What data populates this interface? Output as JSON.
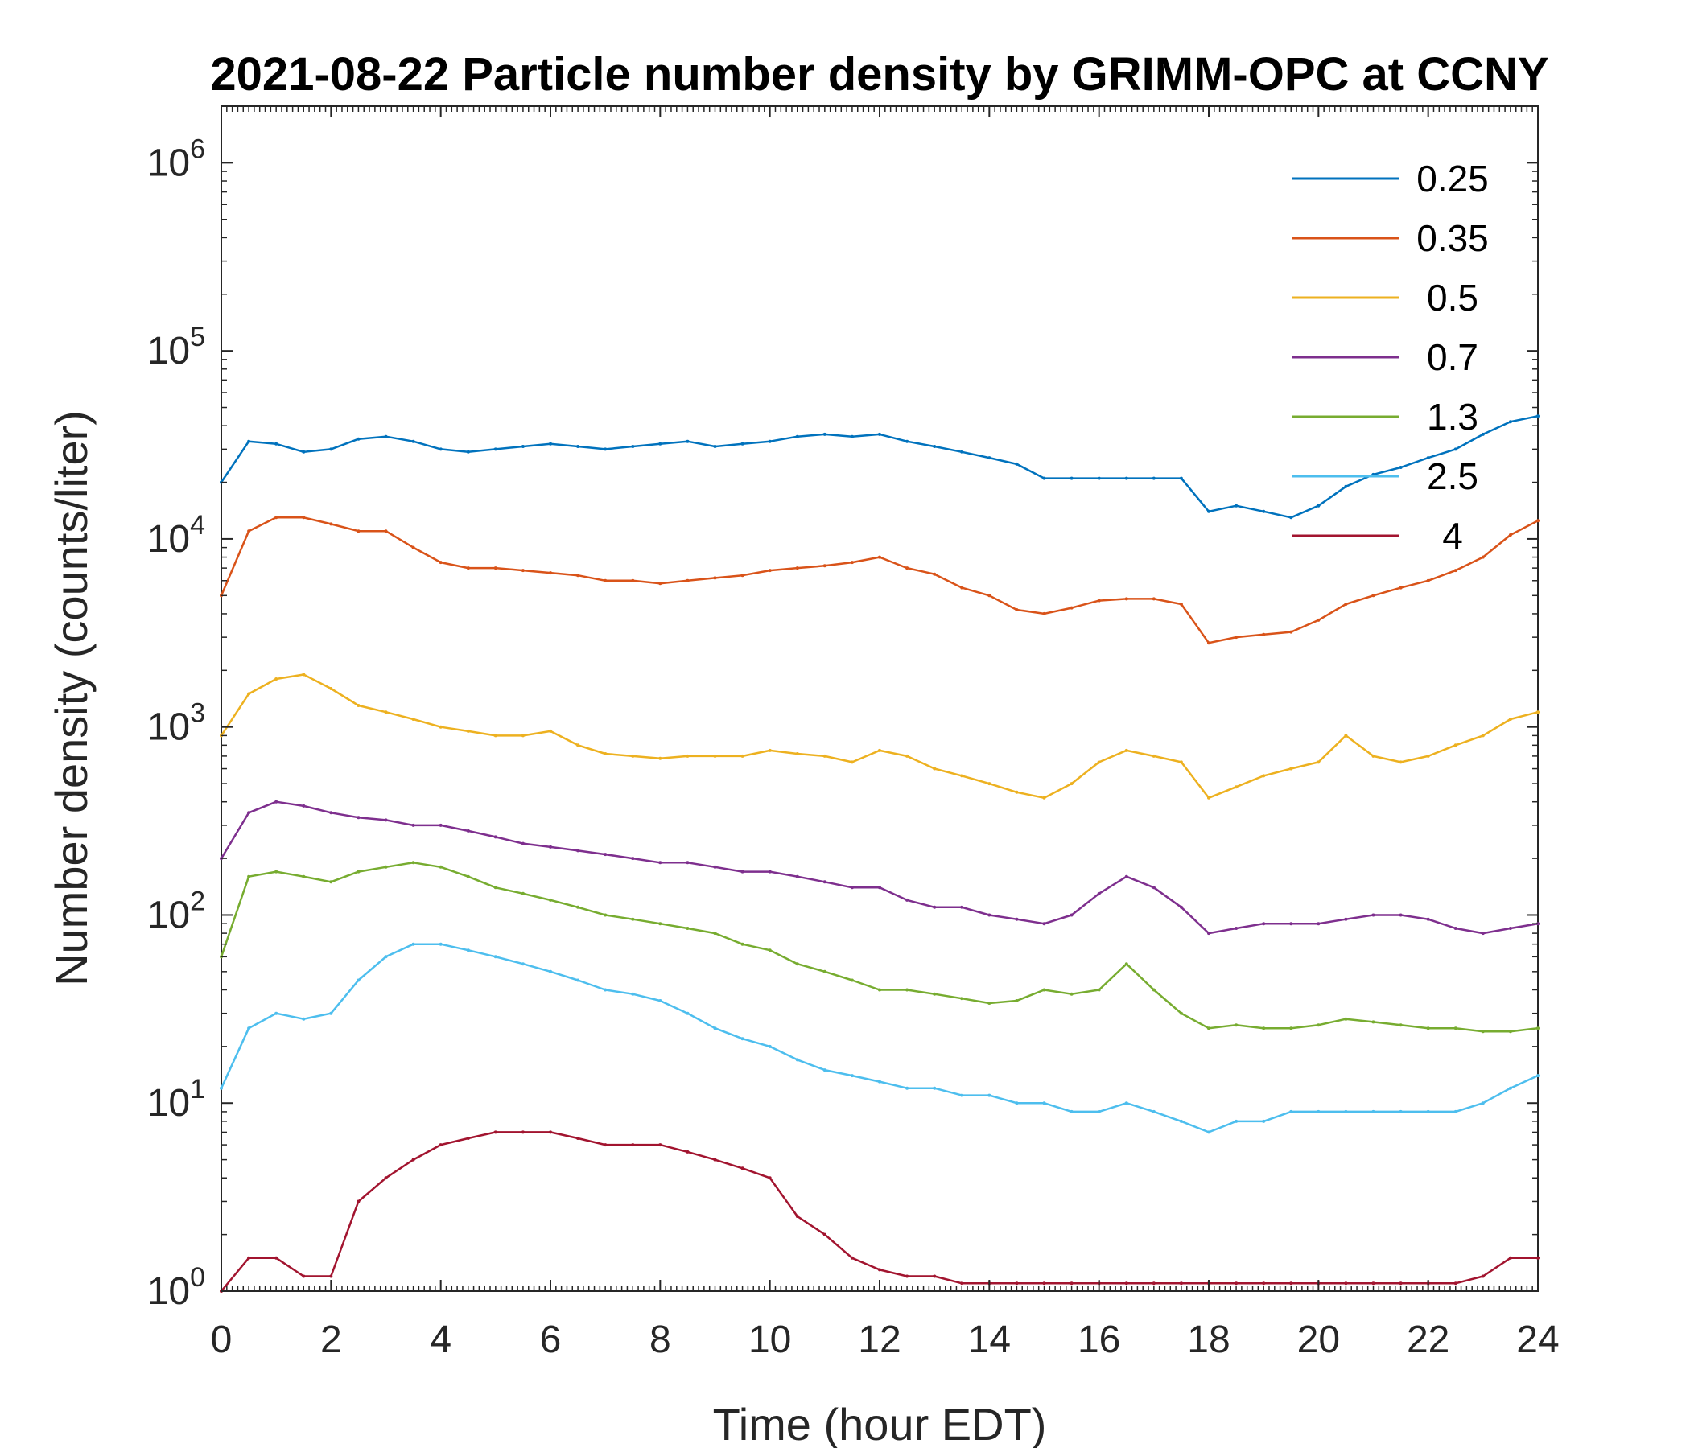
{
  "chart_data": {
    "type": "line",
    "title": "2021-08-22 Particle number density by GRIMM-OPC at CCNY",
    "xlabel": "Time (hour EDT)",
    "ylabel": "Number density (counts/liter)",
    "xlim": [
      0,
      24
    ],
    "ylim": [
      1,
      2000000
    ],
    "yscale": "log",
    "x_ticks": [
      "0",
      "2",
      "4",
      "6",
      "8",
      "10",
      "12",
      "14",
      "16",
      "18",
      "20",
      "22",
      "24"
    ],
    "y_ticks": [
      {
        "base": "10",
        "exp": "0"
      },
      {
        "base": "10",
        "exp": "1"
      },
      {
        "base": "10",
        "exp": "2"
      },
      {
        "base": "10",
        "exp": "3"
      },
      {
        "base": "10",
        "exp": "4"
      },
      {
        "base": "10",
        "exp": "5"
      },
      {
        "base": "10",
        "exp": "6"
      }
    ],
    "grid": false,
    "legend_position": "top-right",
    "x": [
      0,
      0.5,
      1,
      1.5,
      2,
      2.5,
      3,
      3.5,
      4,
      4.5,
      5,
      5.5,
      6,
      6.5,
      7,
      7.5,
      8,
      8.5,
      9,
      9.5,
      10,
      10.5,
      11,
      11.5,
      12,
      12.5,
      13,
      13.5,
      14,
      14.5,
      15,
      15.5,
      16,
      16.5,
      17,
      17.5,
      18,
      18.5,
      19,
      19.5,
      20,
      20.5,
      21,
      21.5,
      22,
      22.5,
      23,
      23.5,
      24
    ],
    "series": [
      {
        "name": "0.25",
        "color": "#0072BD",
        "values": [
          20000,
          33000,
          32000,
          29000,
          30000,
          34000,
          35000,
          33000,
          30000,
          29000,
          30000,
          31000,
          32000,
          31000,
          30000,
          31000,
          32000,
          33000,
          31000,
          32000,
          33000,
          35000,
          36000,
          35000,
          36000,
          33000,
          31000,
          29000,
          27000,
          25000,
          21000,
          21000,
          21000,
          21000,
          21000,
          21000,
          14000,
          15000,
          14000,
          13000,
          15000,
          19000,
          22000,
          24000,
          27000,
          30000,
          36000,
          42000,
          45000
        ]
      },
      {
        "name": "0.35",
        "color": "#D95319",
        "values": [
          5000,
          11000,
          13000,
          13000,
          12000,
          11000,
          11000,
          9000,
          7500,
          7000,
          7000,
          6800,
          6600,
          6400,
          6000,
          6000,
          5800,
          6000,
          6200,
          6400,
          6800,
          7000,
          7200,
          7500,
          8000,
          7000,
          6500,
          5500,
          5000,
          4200,
          4000,
          4300,
          4700,
          4800,
          4800,
          4500,
          2800,
          3000,
          3100,
          3200,
          3700,
          4500,
          5000,
          5500,
          6000,
          6800,
          8000,
          10500,
          12500
        ]
      },
      {
        "name": "0.5",
        "color": "#EDB120",
        "values": [
          900,
          1500,
          1800,
          1900,
          1600,
          1300,
          1200,
          1100,
          1000,
          950,
          900,
          900,
          950,
          800,
          720,
          700,
          680,
          700,
          700,
          700,
          750,
          720,
          700,
          650,
          750,
          700,
          600,
          550,
          500,
          450,
          420,
          500,
          650,
          750,
          700,
          650,
          420,
          480,
          550,
          600,
          650,
          900,
          700,
          650,
          700,
          800,
          900,
          1100,
          1200
        ]
      },
      {
        "name": "0.7",
        "color": "#7E2F8E",
        "values": [
          200,
          350,
          400,
          380,
          350,
          330,
          320,
          300,
          300,
          280,
          260,
          240,
          230,
          220,
          210,
          200,
          190,
          190,
          180,
          170,
          170,
          160,
          150,
          140,
          140,
          120,
          110,
          110,
          100,
          95,
          90,
          100,
          130,
          160,
          140,
          110,
          80,
          85,
          90,
          90,
          90,
          95,
          100,
          100,
          95,
          85,
          80,
          85,
          90
        ]
      },
      {
        "name": "1.3",
        "color": "#77AC30",
        "values": [
          60,
          160,
          170,
          160,
          150,
          170,
          180,
          190,
          180,
          160,
          140,
          130,
          120,
          110,
          100,
          95,
          90,
          85,
          80,
          70,
          65,
          55,
          50,
          45,
          40,
          40,
          38,
          36,
          34,
          35,
          40,
          38,
          40,
          55,
          40,
          30,
          25,
          26,
          25,
          25,
          26,
          28,
          27,
          26,
          25,
          25,
          24,
          24,
          25
        ]
      },
      {
        "name": "2.5",
        "color": "#4DBEEE",
        "values": [
          12,
          25,
          30,
          28,
          30,
          45,
          60,
          70,
          70,
          65,
          60,
          55,
          50,
          45,
          40,
          38,
          35,
          30,
          25,
          22,
          20,
          17,
          15,
          14,
          13,
          12,
          12,
          11,
          11,
          10,
          10,
          9,
          9,
          10,
          9,
          8,
          7,
          8,
          8,
          9,
          9,
          9,
          9,
          9,
          9,
          9,
          10,
          12,
          14
        ]
      },
      {
        "name": "4",
        "color": "#A2142F",
        "values": [
          1,
          1.5,
          1.5,
          1.2,
          1.2,
          3,
          4,
          5,
          6,
          6.5,
          7,
          7,
          7,
          6.5,
          6,
          6,
          6,
          5.5,
          5,
          4.5,
          4,
          2.5,
          2,
          1.5,
          1.3,
          1.2,
          1.2,
          1.1,
          1.1,
          1.1,
          1.1,
          1.1,
          1.1,
          1.1,
          1.1,
          1.1,
          1.1,
          1.1,
          1.1,
          1.1,
          1.1,
          1.1,
          1.1,
          1.1,
          1.1,
          1.1,
          1.2,
          1.5,
          1.5
        ]
      }
    ]
  }
}
